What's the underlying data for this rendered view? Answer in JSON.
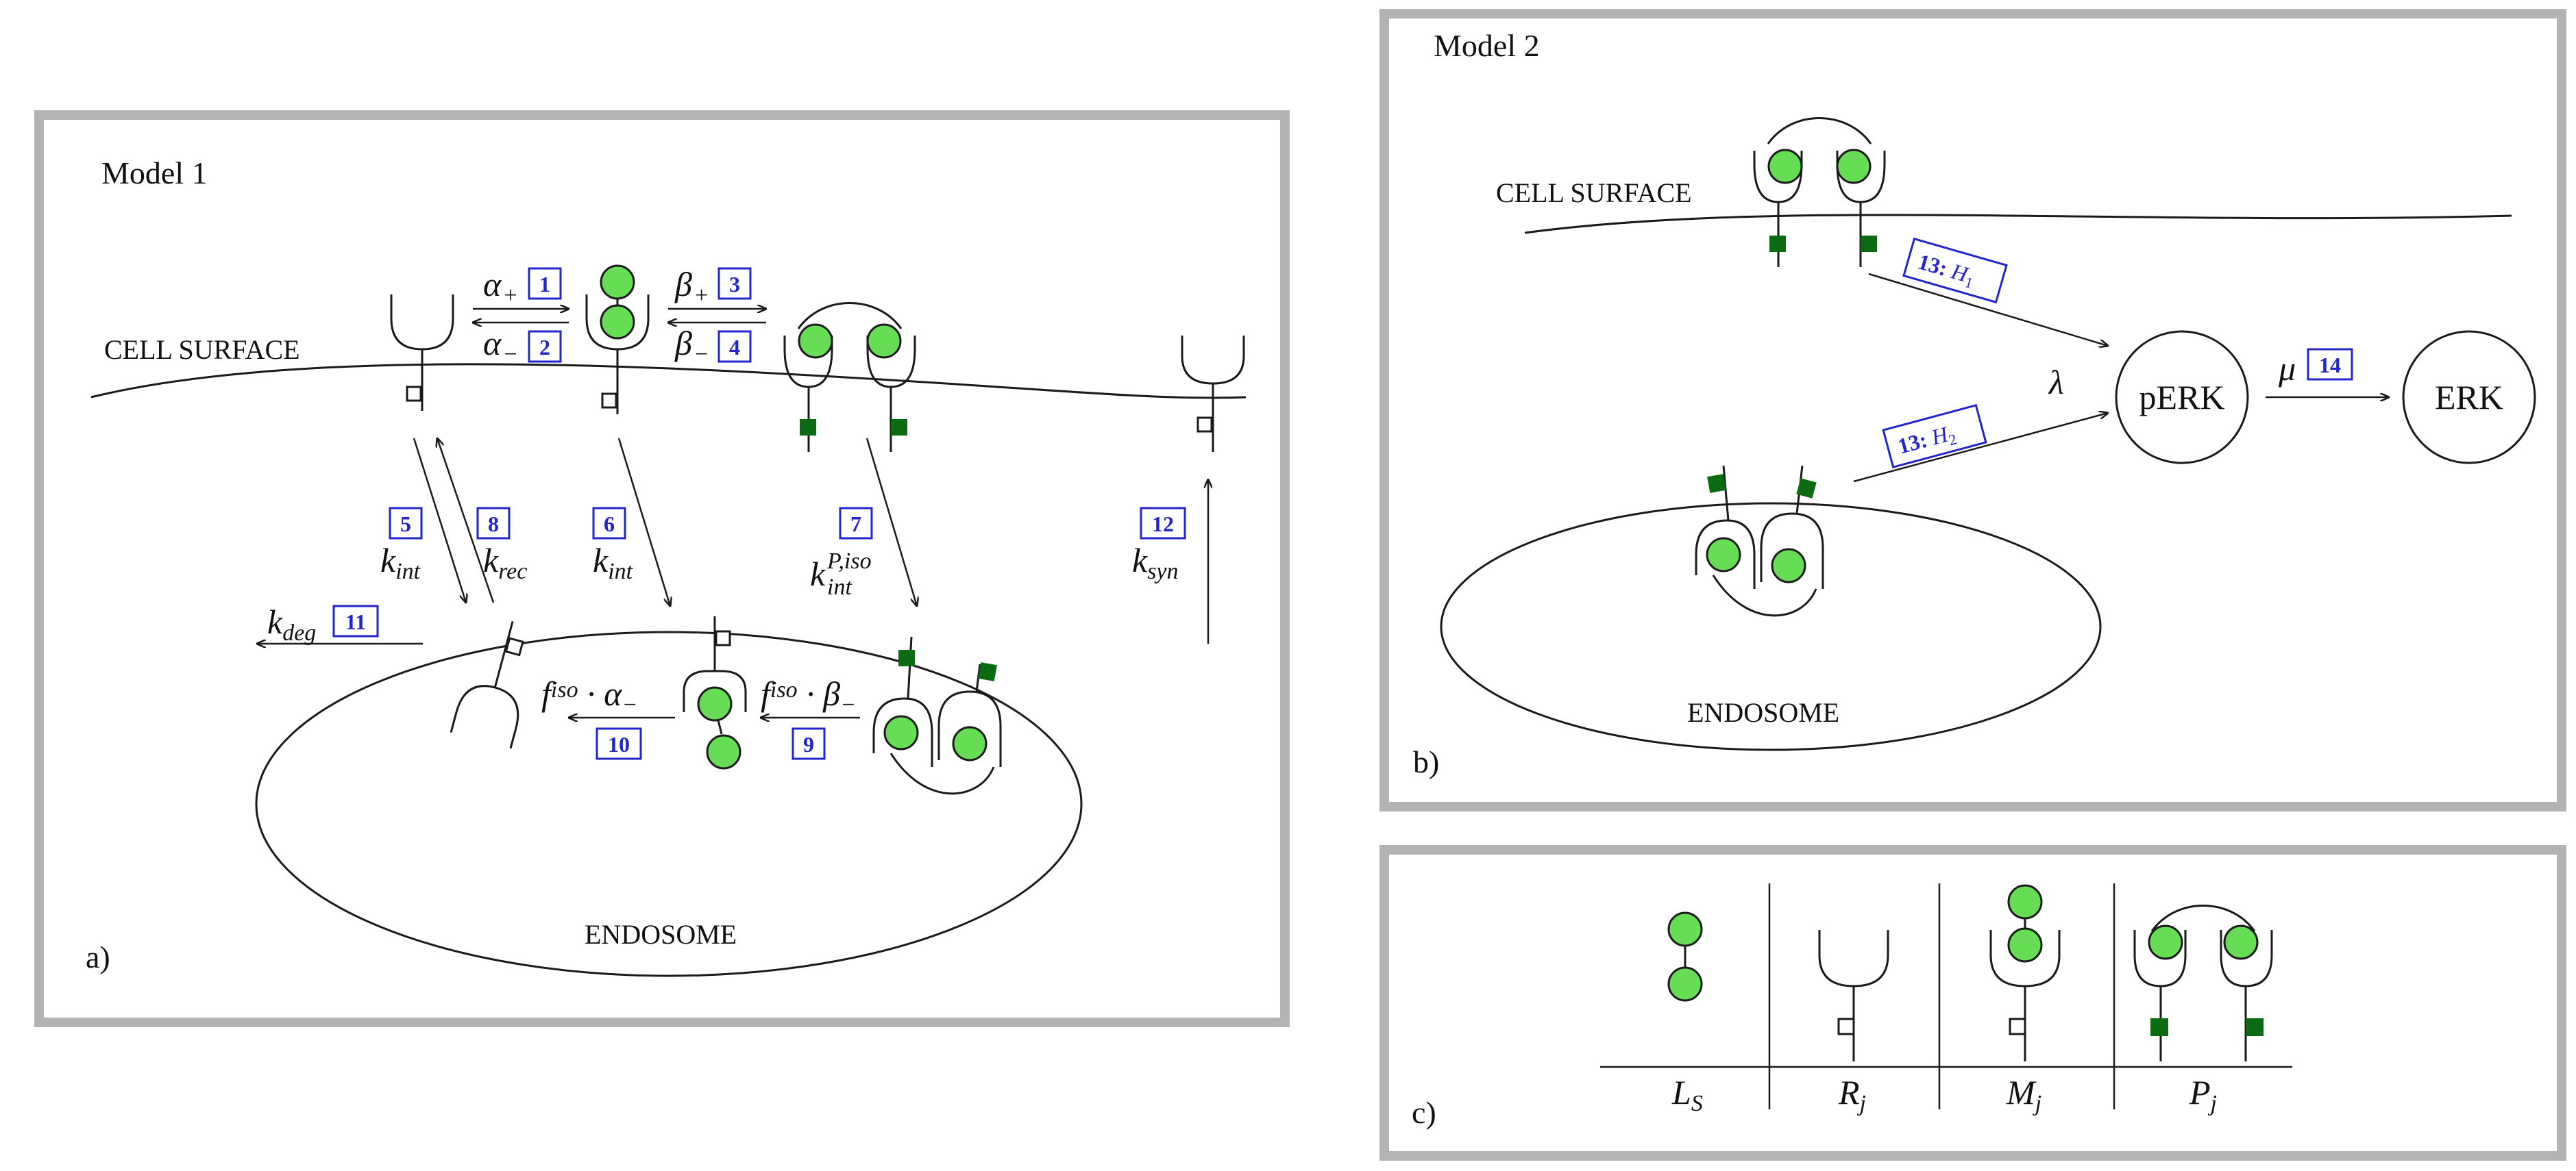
{
  "panel_a": {
    "title": "Model 1",
    "tag": "a)",
    "cell_surface": "CELL SURFACE",
    "endosome": "ENDOSOME",
    "reactions": [
      {
        "num": "1",
        "rate": "α",
        "rate_sub": "+"
      },
      {
        "num": "2",
        "rate": "α",
        "rate_sub": "−"
      },
      {
        "num": "3",
        "rate": "β",
        "rate_sub": "+"
      },
      {
        "num": "4",
        "rate": "β",
        "rate_sub": "−"
      },
      {
        "num": "5",
        "rate": "k",
        "rate_sub": "int"
      },
      {
        "num": "6",
        "rate": "k",
        "rate_sub": "int"
      },
      {
        "num": "7",
        "rate": "k",
        "rate_sub": "int",
        "rate_sup": "P,iso"
      },
      {
        "num": "8",
        "rate": "k",
        "rate_sub": "rec"
      },
      {
        "num": "9",
        "rate_pre": "f",
        "rate_pre_sup": "iso",
        "rate_op": " · ",
        "rate": "β",
        "rate_sub": "−"
      },
      {
        "num": "10",
        "rate_pre": "f",
        "rate_pre_sup": "iso",
        "rate_op": " · ",
        "rate": "α",
        "rate_sub": "−"
      },
      {
        "num": "11",
        "rate": "k",
        "rate_sub": "deg"
      },
      {
        "num": "12",
        "rate": "k",
        "rate_sub": "syn"
      }
    ]
  },
  "panel_b": {
    "title": "Model 2",
    "tag": "b)",
    "cell_surface": "CELL SURFACE",
    "endosome": "ENDOSOME",
    "box_h1": {
      "num": "13:",
      "var": "H",
      "sub": "1"
    },
    "box_h2": {
      "num": "13:",
      "var": "H",
      "sub": "2"
    },
    "lambda": "λ",
    "mu": "μ",
    "box_14": "14",
    "node_perk": "pERK",
    "node_erk": "ERK"
  },
  "panel_c": {
    "tag": "c)",
    "legend": [
      {
        "sym": "L",
        "sub": "S"
      },
      {
        "sym": "R",
        "sub": "j"
      },
      {
        "sym": "M",
        "sub": "j"
      },
      {
        "sym": "P",
        "sub": "j"
      }
    ]
  },
  "colors": {
    "ligand": "#66dd55",
    "phospho": "#0b6b12",
    "box_blue": "#2424cc",
    "panel_border": "#b3b3b3"
  }
}
